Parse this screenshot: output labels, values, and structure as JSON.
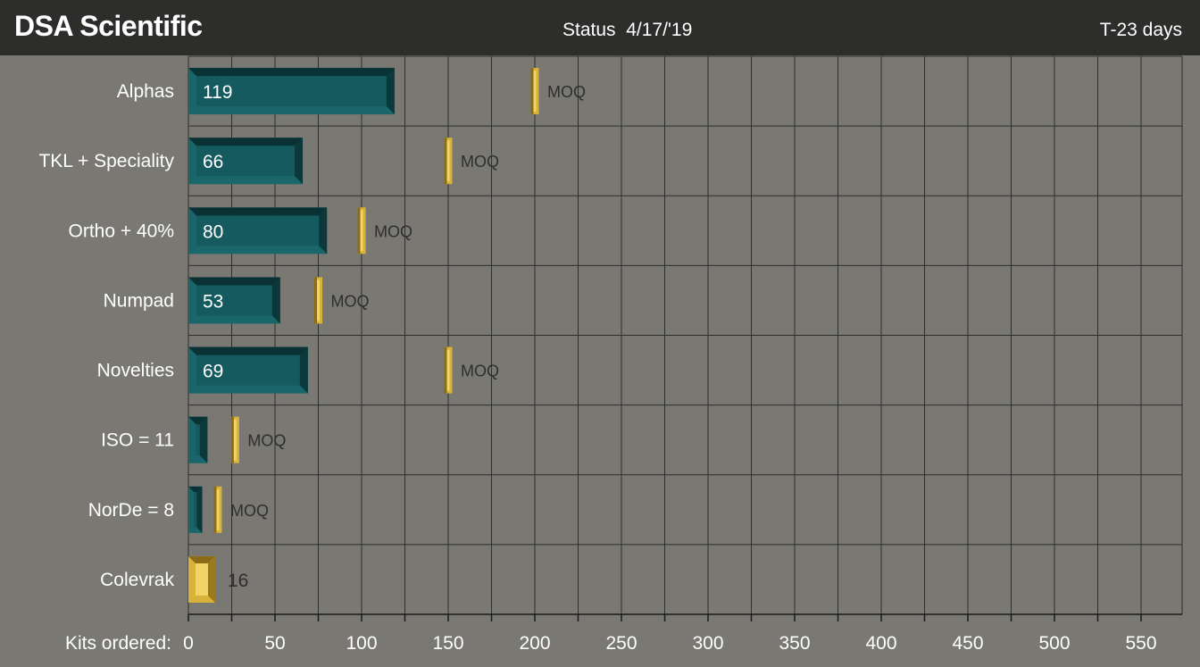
{
  "header": {
    "brand": "DSA Scientific",
    "status": "Status  4/17/'19",
    "countdown": "T-23 days"
  },
  "chart_data": {
    "type": "bar",
    "orientation": "horizontal",
    "xlabel": "Kits ordered:",
    "xlim": [
      0,
      575
    ],
    "xticks": [
      0,
      50,
      100,
      150,
      200,
      250,
      300,
      350,
      400,
      450,
      500,
      550
    ],
    "grid": true,
    "marker_label": "MOQ",
    "categories": [
      "Alphas",
      "TKL + Speciality",
      "Ortho + 40%",
      "Numpad",
      "Novelties",
      "ISO = 11",
      "NorDe = 8",
      "Colevrak"
    ],
    "values": [
      119,
      66,
      80,
      53,
      69,
      11,
      8,
      16
    ],
    "moq": [
      200,
      150,
      100,
      75,
      150,
      27,
      17,
      null
    ],
    "value_labels": [
      "119",
      "66",
      "80",
      "53",
      "69",
      "",
      "",
      "16"
    ],
    "highlight": [
      false,
      false,
      false,
      false,
      false,
      false,
      false,
      true
    ],
    "colors": {
      "bar": "#145a5e",
      "bar_dark": "#0a3235",
      "bar_light": "#1e7377",
      "gold": "#d9b23a",
      "gold_dark": "#8a6b17",
      "gold_light": "#f0d467",
      "grid": "#2e2e2c",
      "background": "#7a7873",
      "header": "#2d2d2b"
    }
  }
}
